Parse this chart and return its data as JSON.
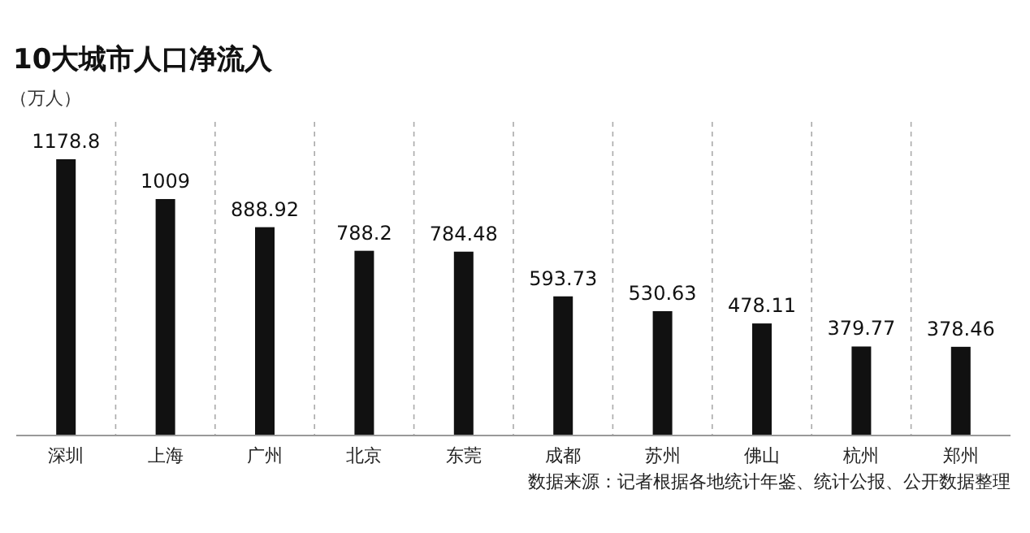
{
  "chart_data": {
    "type": "bar",
    "title": "10大城市人口净流入",
    "ylabel": "（万人）",
    "categories": [
      "深圳",
      "上海",
      "广州",
      "北京",
      "东莞",
      "成都",
      "苏州",
      "佛山",
      "杭州",
      "郑州"
    ],
    "values": [
      1178.8,
      1009,
      888.92,
      788.2,
      784.48,
      593.73,
      530.63,
      478.11,
      379.77,
      378.46
    ],
    "color": "#111111",
    "data_labels": true,
    "grid": "x",
    "annotations": [
      "数据来源：记者根据各地统计年鉴、统计公报、公开数据整理"
    ]
  }
}
